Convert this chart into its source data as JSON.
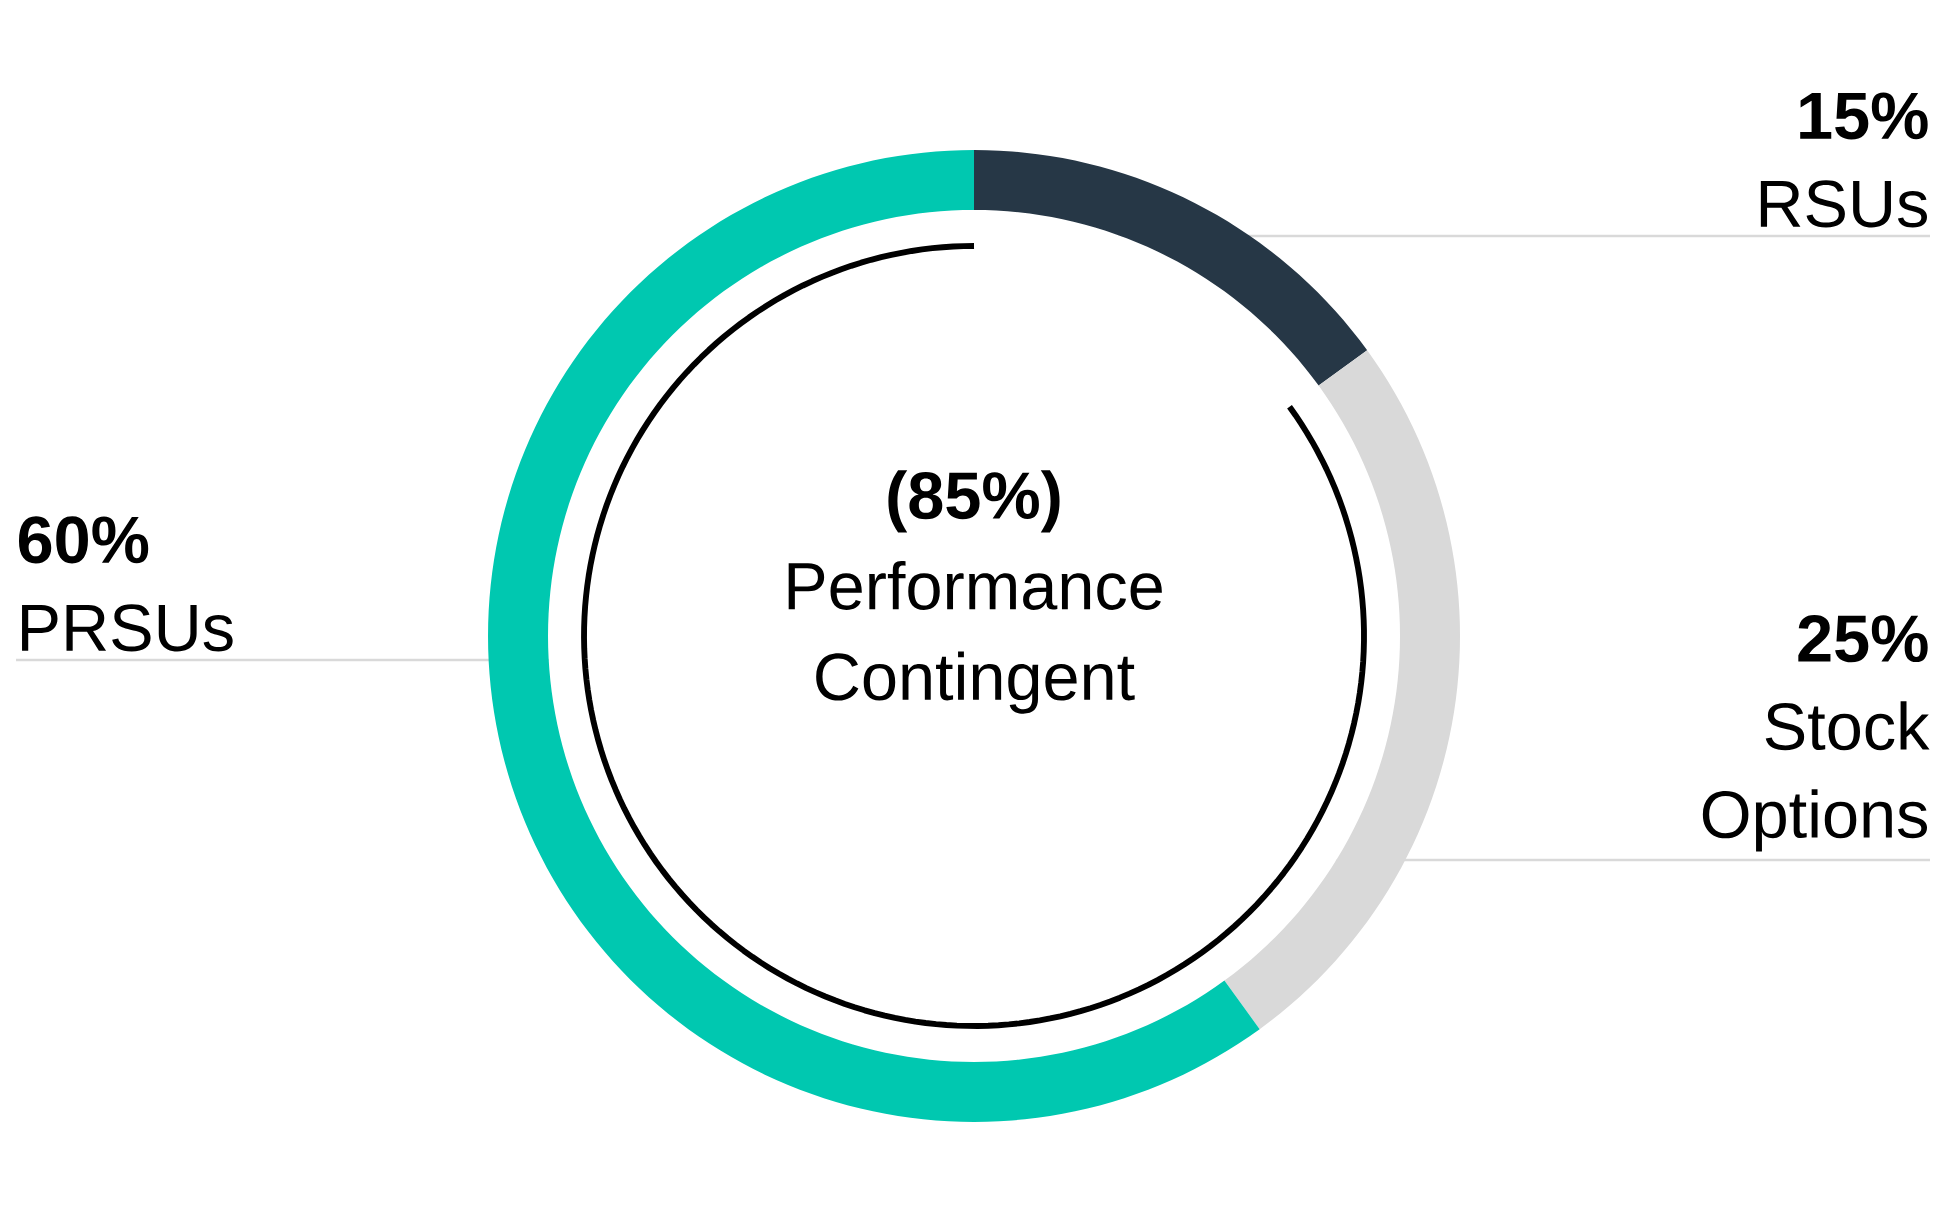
{
  "chart_data": {
    "type": "donut",
    "categories": [
      "RSUs",
      "Stock Options",
      "PRSUs"
    ],
    "values": [
      15,
      25,
      60
    ],
    "value_labels": [
      "15%",
      "25%",
      "60%"
    ],
    "colors": [
      "#263746",
      "#d9d9d9",
      "#00c8b0"
    ],
    "annotations": [
      "(85%)",
      "Performance Contingent"
    ]
  }
}
